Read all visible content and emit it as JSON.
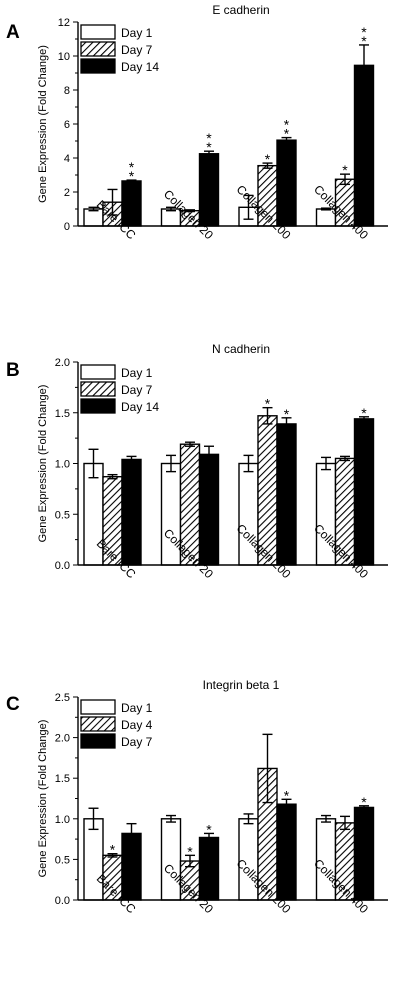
{
  "chart_data": [
    {
      "panel_letter": "A",
      "type": "bar",
      "title": "E cadherin",
      "ylabel": "Gene Expression (Fold Change)",
      "ylim": [
        0,
        12
      ],
      "yticks": [
        0,
        2,
        4,
        6,
        8,
        10,
        12
      ],
      "categories": [
        "Bare ICC",
        "Collagen 20",
        "Collagen 200",
        "Collagen 400"
      ],
      "legend_position": "top-left",
      "series": [
        {
          "name": "Day 1",
          "fill": "white",
          "values": [
            1.0,
            1.0,
            1.1,
            1.0
          ],
          "errors": [
            0.1,
            0.1,
            0.7,
            0.05
          ],
          "stars": [
            "",
            "",
            "",
            ""
          ]
        },
        {
          "name": "Day 7",
          "fill": "hatch",
          "values": [
            1.4,
            0.9,
            3.55,
            2.75
          ],
          "errors": [
            0.75,
            0.05,
            0.15,
            0.3
          ],
          "stars": [
            "",
            "",
            "*",
            "*"
          ]
        },
        {
          "name": "Day 14",
          "fill": "black",
          "values": [
            2.65,
            4.25,
            5.05,
            9.45
          ],
          "errors": [
            0.05,
            0.15,
            0.15,
            1.2
          ],
          "stars": [
            "**",
            "**",
            "**",
            "**"
          ]
        }
      ]
    },
    {
      "panel_letter": "B",
      "type": "bar",
      "title": "N cadherin",
      "ylabel": "Gene Expression (Fold Change)",
      "ylim": [
        0,
        2.0
      ],
      "yticks": [
        "0.0",
        "0.5",
        "1.0",
        "1.5",
        "2.0"
      ],
      "categories": [
        "Bare ICC",
        "Collagen 20",
        "Collagen 200",
        "Collagen 400"
      ],
      "legend_position": "top-left",
      "series": [
        {
          "name": "Day 1",
          "fill": "white",
          "values": [
            1.0,
            1.0,
            1.0,
            1.0
          ],
          "errors": [
            0.14,
            0.08,
            0.08,
            0.06
          ],
          "stars": [
            "",
            "",
            "",
            ""
          ]
        },
        {
          "name": "Day 7",
          "fill": "hatch",
          "values": [
            0.87,
            1.19,
            1.47,
            1.05
          ],
          "errors": [
            0.02,
            0.02,
            0.08,
            0.02
          ],
          "stars": [
            "",
            "",
            "*",
            ""
          ]
        },
        {
          "name": "Day 14",
          "fill": "black",
          "values": [
            1.04,
            1.09,
            1.39,
            1.44
          ],
          "errors": [
            0.03,
            0.08,
            0.06,
            0.02
          ],
          "stars": [
            "",
            "",
            "*",
            "*"
          ]
        }
      ]
    },
    {
      "panel_letter": "C",
      "type": "bar",
      "title": "Integrin beta 1",
      "ylabel": "Gene Expression (Fold Change)",
      "ylim": [
        0,
        2.5
      ],
      "yticks": [
        "0.0",
        "0.5",
        "1.0",
        "1.5",
        "2.0",
        "2.5"
      ],
      "categories": [
        "Bare ICC",
        "Collagen 20",
        "Collagen 200",
        "Collagen 400"
      ],
      "legend_position": "top-left",
      "series": [
        {
          "name": "Day 1",
          "fill": "white",
          "values": [
            1.0,
            1.0,
            1.0,
            1.0
          ],
          "errors": [
            0.13,
            0.04,
            0.06,
            0.04
          ],
          "stars": [
            "",
            "",
            "",
            ""
          ]
        },
        {
          "name": "Day 4",
          "fill": "hatch",
          "values": [
            0.55,
            0.48,
            1.62,
            0.95
          ],
          "errors": [
            0.02,
            0.07,
            0.42,
            0.08
          ],
          "stars": [
            "*",
            "*",
            "",
            ""
          ]
        },
        {
          "name": "Day 7",
          "fill": "black",
          "values": [
            0.82,
            0.77,
            1.18,
            1.14
          ],
          "errors": [
            0.12,
            0.05,
            0.06,
            0.02
          ],
          "stars": [
            "",
            "*",
            "*",
            "*"
          ]
        }
      ]
    }
  ]
}
